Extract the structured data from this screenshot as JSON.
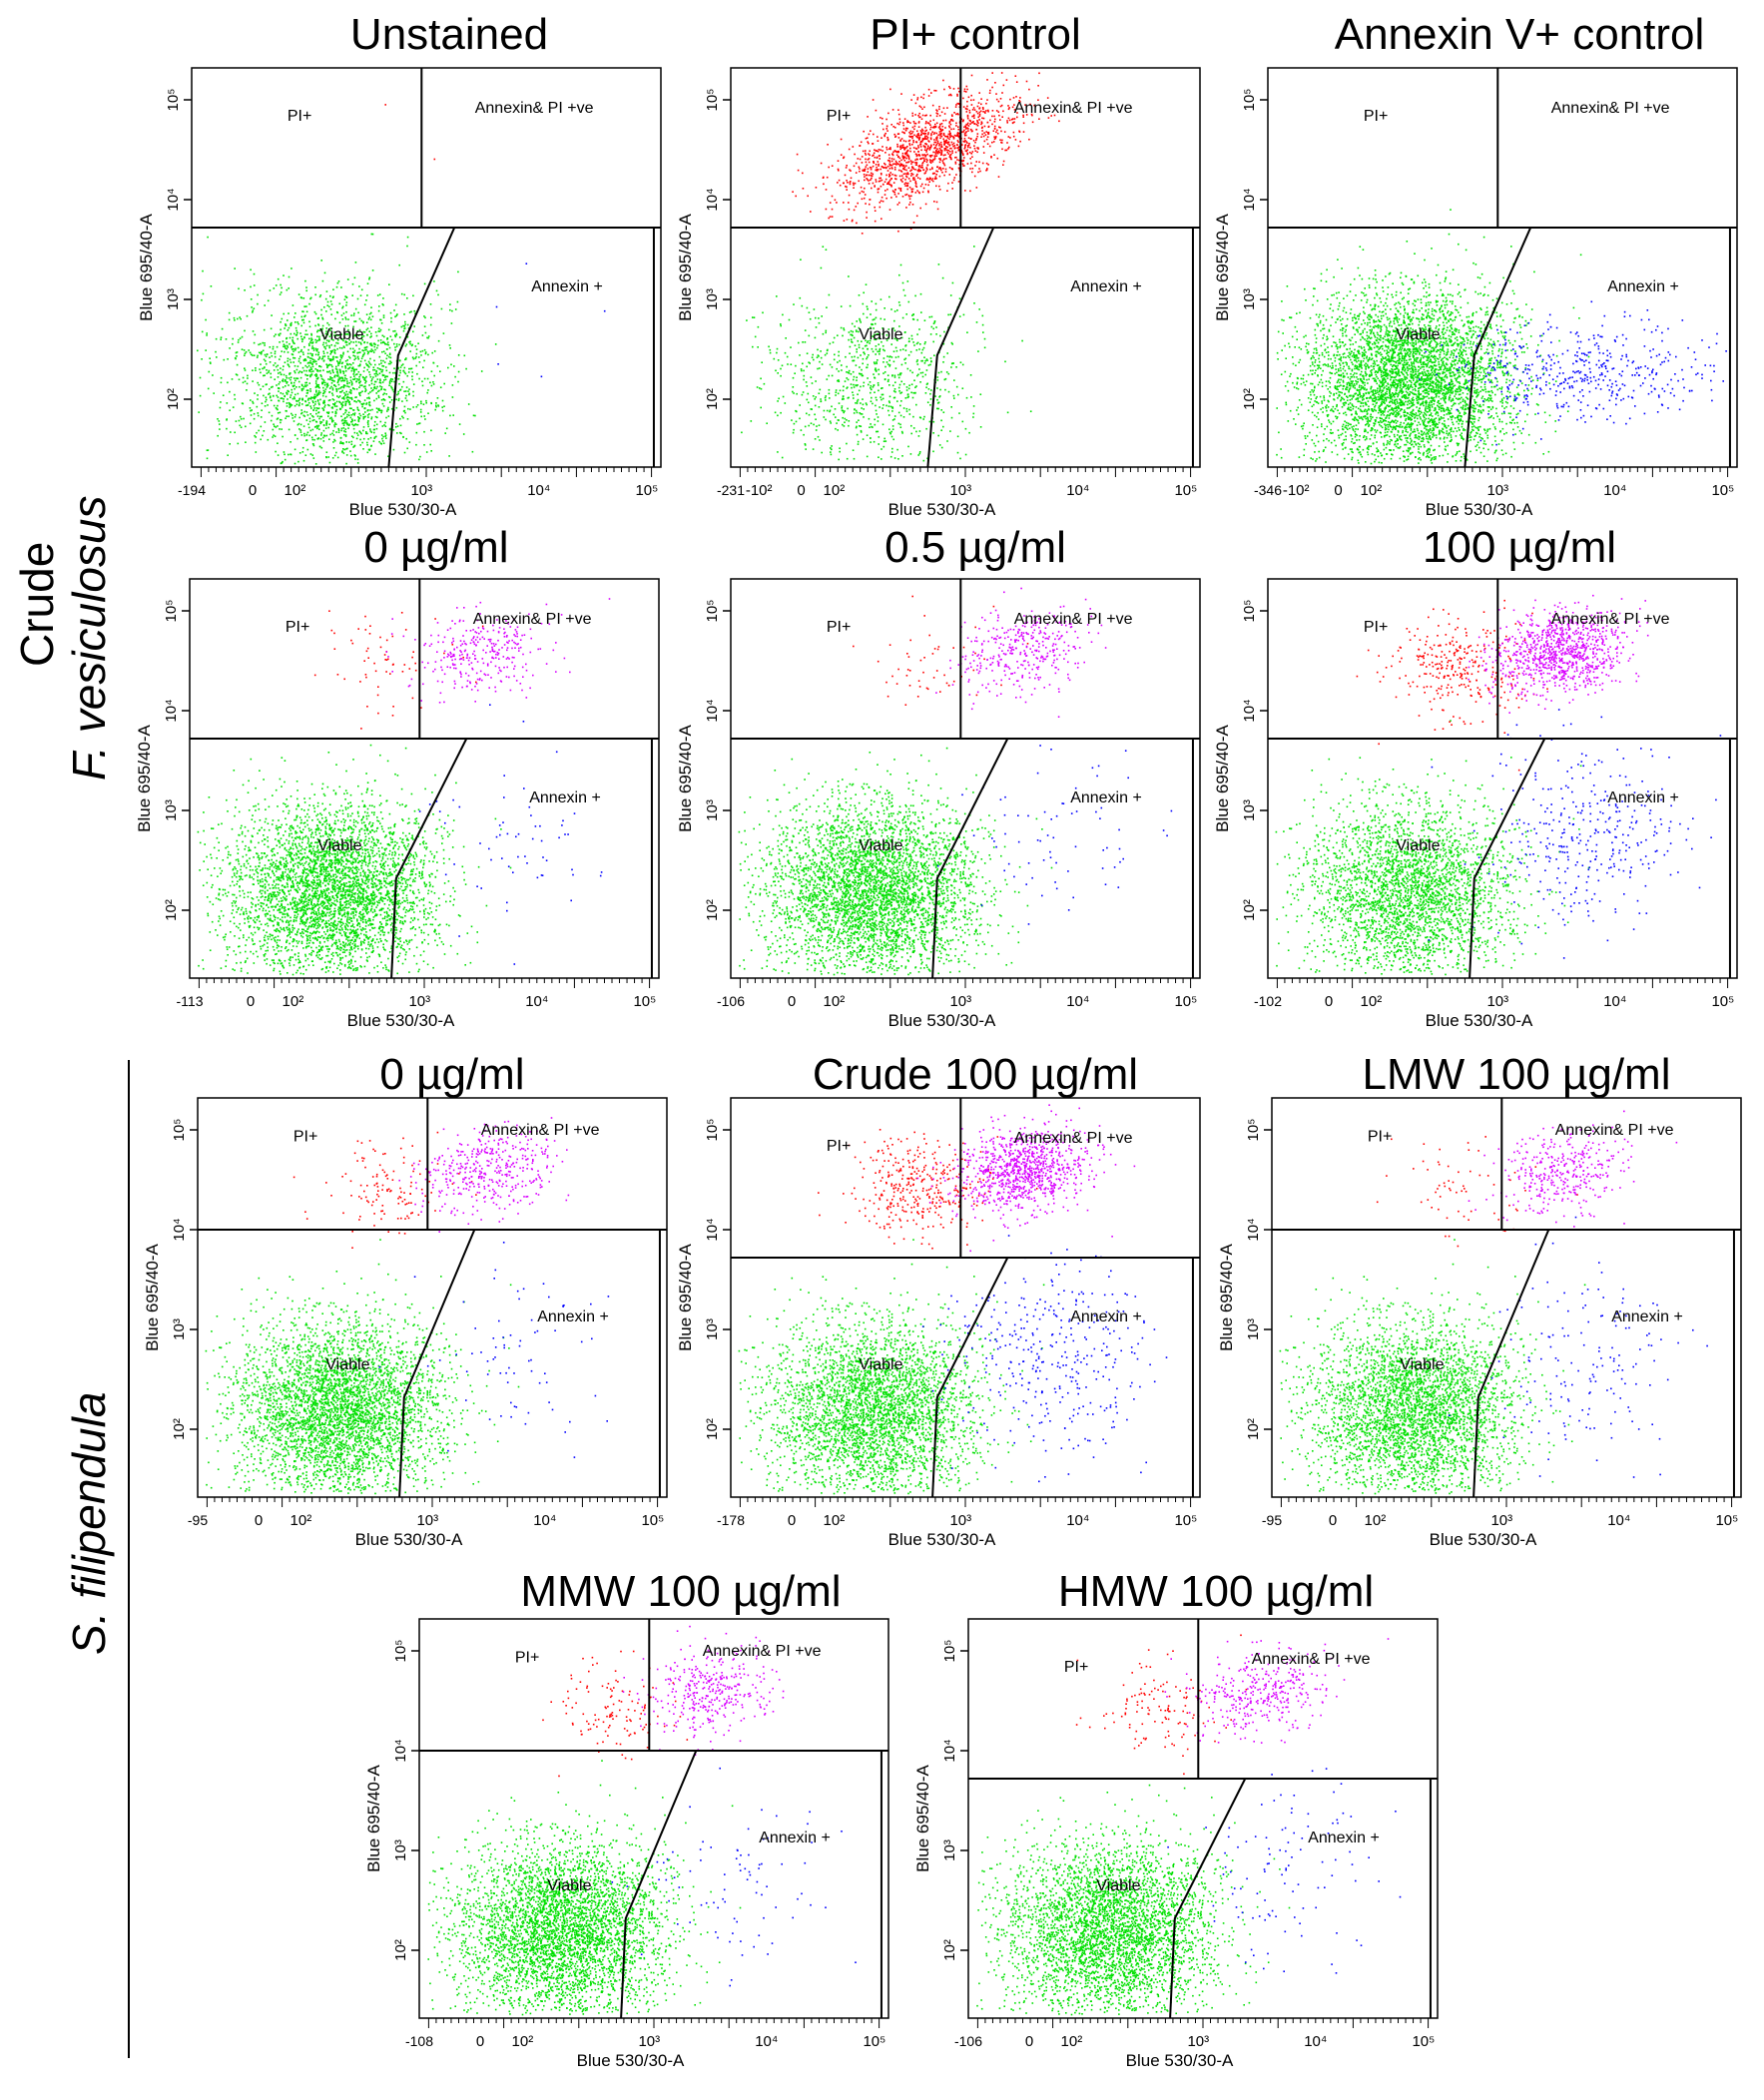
{
  "figure": {
    "row_labels": {
      "fv_line1": "Crude",
      "fv_line2": "F. vesiculosus",
      "sf": "S. filipendula"
    },
    "colors": {
      "viable": "#00e000",
      "pi": "#ff0000",
      "double": "#d900ff",
      "annexin": "#0000ff"
    }
  },
  "chart_data": [
    {
      "type": "scatter",
      "id": "unstained",
      "title": "Unstained",
      "xlabel": "Blue 530/30-A",
      "ylabel": "Blue 695/40-A",
      "x_min_label": "-194",
      "x_ticks": [
        "0",
        "10²",
        "10³",
        "10⁴",
        "10⁵"
      ],
      "y_ticks": [
        "10²",
        "10³",
        "10⁴",
        "10⁵"
      ],
      "gates": [
        "PI+",
        "Annexin& PI +ve",
        "Viable",
        "Annexin +"
      ],
      "populations": {
        "viable": 2200,
        "pi": 2,
        "double": 0,
        "annexin": 5
      }
    },
    {
      "type": "scatter",
      "id": "pi_control",
      "title": "PI+ control",
      "xlabel": "Blue 530/30-A",
      "ylabel": "Blue 695/40-A",
      "x_min_label": "-231",
      "x_ticks": [
        "-10²",
        "0",
        "10²",
        "10³",
        "10⁴",
        "10⁵"
      ],
      "y_ticks": [
        "10²",
        "10³",
        "10⁴",
        "10⁵"
      ],
      "gates": [
        "PI+",
        "Annexin& PI +ve",
        "Viable",
        "Annexin +"
      ],
      "populations": {
        "viable": 900,
        "pi": 1400,
        "double": 0,
        "annexin": 0
      }
    },
    {
      "type": "scatter",
      "id": "annexin_control",
      "title": "Annexin V+ control",
      "xlabel": "Blue 530/30-A",
      "ylabel": "Blue 695/40-A",
      "x_min_label": "-346",
      "x_ticks": [
        "-10²",
        "0",
        "10²",
        "10³",
        "10⁴",
        "10⁵"
      ],
      "y_ticks": [
        "10²",
        "10³",
        "10⁴",
        "10⁵"
      ],
      "gates": [
        "PI+",
        "Annexin& PI +ve",
        "Viable",
        "Annexin +"
      ],
      "populations": {
        "viable": 4500,
        "pi": 0,
        "double": 0,
        "annexin": 450
      }
    },
    {
      "type": "scatter",
      "id": "fv_0",
      "title": "0 µg/ml",
      "xlabel": "Blue 530/30-A",
      "ylabel": "Blue 695/40-A",
      "x_min_label": "-113",
      "x_ticks": [
        "0",
        "10²",
        "10³",
        "10⁴",
        "10⁵"
      ],
      "y_ticks": [
        "10²",
        "10³",
        "10⁴",
        "10⁵"
      ],
      "gates": [
        "PI+",
        "Annexin& PI +ve",
        "Viable",
        "Annexin +"
      ],
      "populations": {
        "viable": 4000,
        "pi": 60,
        "double": 300,
        "annexin": 60
      }
    },
    {
      "type": "scatter",
      "id": "fv_05",
      "title": "0.5 µg/ml",
      "xlabel": "Blue 530/30-A",
      "ylabel": "Blue 695/40-A",
      "x_min_label": "-106",
      "x_ticks": [
        "0",
        "10²",
        "10³",
        "10⁴",
        "10⁵"
      ],
      "y_ticks": [
        "10²",
        "10³",
        "10⁴",
        "10⁵"
      ],
      "gates": [
        "PI+",
        "Annexin& PI +ve",
        "Viable",
        "Annexin +"
      ],
      "populations": {
        "viable": 4000,
        "pi": 50,
        "double": 350,
        "annexin": 70
      }
    },
    {
      "type": "scatter",
      "id": "fv_100",
      "title": "100 µg/ml",
      "xlabel": "Blue 530/30-A",
      "ylabel": "Blue 695/40-A",
      "x_min_label": "-102",
      "x_ticks": [
        "0",
        "10²",
        "10³",
        "10⁴",
        "10⁵"
      ],
      "y_ticks": [
        "10²",
        "10³",
        "10⁴",
        "10⁵"
      ],
      "gates": [
        "PI+",
        "Annexin& PI +ve",
        "Viable",
        "Annexin +"
      ],
      "populations": {
        "viable": 3000,
        "pi": 300,
        "double": 900,
        "annexin": 350
      }
    },
    {
      "type": "scatter",
      "id": "sf_0",
      "title": "0 µg/ml",
      "xlabel": "Blue 530/30-A",
      "ylabel": "Blue 695/40-A",
      "x_min_label": "-95",
      "x_ticks": [
        "0",
        "10²",
        "10³",
        "10⁴",
        "10⁵"
      ],
      "y_ticks": [
        "10²",
        "10³",
        "10⁴",
        "10⁵"
      ],
      "gates": [
        "PI+",
        "Annexin& PI +ve",
        "Viable",
        "Annexin +"
      ],
      "populations": {
        "viable": 4000,
        "pi": 120,
        "double": 400,
        "annexin": 70
      }
    },
    {
      "type": "scatter",
      "id": "sf_crude100",
      "title": "Crude 100 µg/ml",
      "xlabel": "Blue 530/30-A",
      "ylabel": "Blue 695/40-A",
      "x_min_label": "-178",
      "x_ticks": [
        "0",
        "10²",
        "10³",
        "10⁴",
        "10⁵"
      ],
      "y_ticks": [
        "10²",
        "10³",
        "10⁴",
        "10⁵"
      ],
      "gates": [
        "PI+",
        "Annexin& PI +ve",
        "Viable",
        "Annexin +"
      ],
      "populations": {
        "viable": 3500,
        "pi": 350,
        "double": 900,
        "annexin": 350
      }
    },
    {
      "type": "scatter",
      "id": "sf_lmw100",
      "title": "LMW 100 µg/ml",
      "xlabel": "Blue 530/30-A",
      "ylabel": "Blue 695/40-A",
      "x_min_label": "-95",
      "x_ticks": [
        "0",
        "10²",
        "10³",
        "10⁴",
        "10⁵"
      ],
      "y_ticks": [
        "10²",
        "10³",
        "10⁴",
        "10⁵"
      ],
      "gates": [
        "PI+",
        "Annexin& PI +ve",
        "Viable",
        "Annexin +"
      ],
      "populations": {
        "viable": 3500,
        "pi": 60,
        "double": 350,
        "annexin": 150
      }
    },
    {
      "type": "scatter",
      "id": "sf_mmw100",
      "title": "MMW 100 µg/ml",
      "xlabel": "Blue 530/30-A",
      "ylabel": "Blue 695/40-A",
      "x_min_label": "-108",
      "x_ticks": [
        "0",
        "10²",
        "10³",
        "10⁴",
        "10⁵"
      ],
      "y_ticks": [
        "10²",
        "10³",
        "10⁴",
        "10⁵"
      ],
      "gates": [
        "PI+",
        "Annexin& PI +ve",
        "Viable",
        "Annexin +"
      ],
      "populations": {
        "viable": 4000,
        "pi": 120,
        "double": 350,
        "annexin": 80
      }
    },
    {
      "type": "scatter",
      "id": "sf_hmw100",
      "title": "HMW 100 µg/ml",
      "xlabel": "Blue 530/30-A",
      "ylabel": "Blue 695/40-A",
      "x_min_label": "-106",
      "x_ticks": [
        "0",
        "10²",
        "10³",
        "10⁴",
        "10⁵"
      ],
      "y_ticks": [
        "10²",
        "10³",
        "10⁴",
        "10⁵"
      ],
      "gates": [
        "PI+",
        "Annexin& PI +ve",
        "Viable",
        "Annexin +"
      ],
      "populations": {
        "viable": 3800,
        "pi": 120,
        "double": 350,
        "annexin": 100
      }
    }
  ]
}
